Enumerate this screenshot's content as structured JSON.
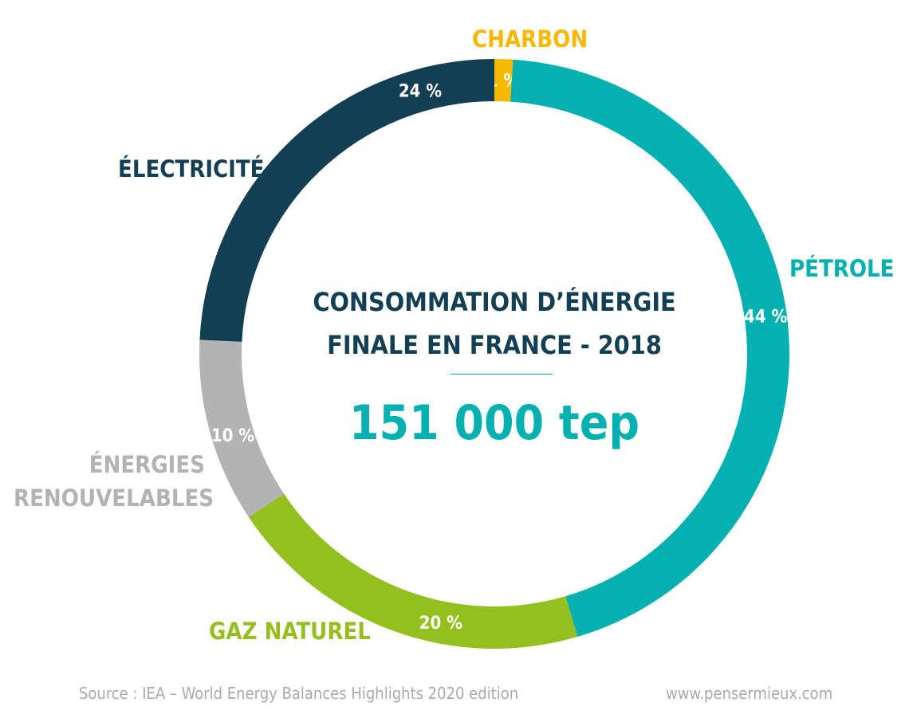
{
  "chart_data": {
    "type": "pie",
    "donut": true,
    "title": "CONSOMMATION D’ÉNERGIE FINALE EN FRANCE - 2018",
    "total_label": "151 000 tep",
    "slices": [
      {
        "label": "CHARBON",
        "value": 1,
        "value_label": "1 %",
        "color": "#f7b800"
      },
      {
        "label": "PÉTROLE",
        "value": 44,
        "value_label": "44 %",
        "color": "#05b0b0"
      },
      {
        "label": "GAZ NATUREL",
        "value": 20,
        "value_label": "20 %",
        "color": "#93c01f"
      },
      {
        "label": "ÉNERGIES RENOUVELABLES",
        "value": 10,
        "value_label": "10 %",
        "color": "#b3b3b3"
      },
      {
        "label": "ÉLECTRICITÉ",
        "value": 24,
        "value_label": "24 %",
        "color": "#133f55"
      }
    ]
  },
  "footer": {
    "source": "Source : IEA – World Energy Balances Highlights 2020 edition",
    "website": "www.pensermieux.com"
  }
}
